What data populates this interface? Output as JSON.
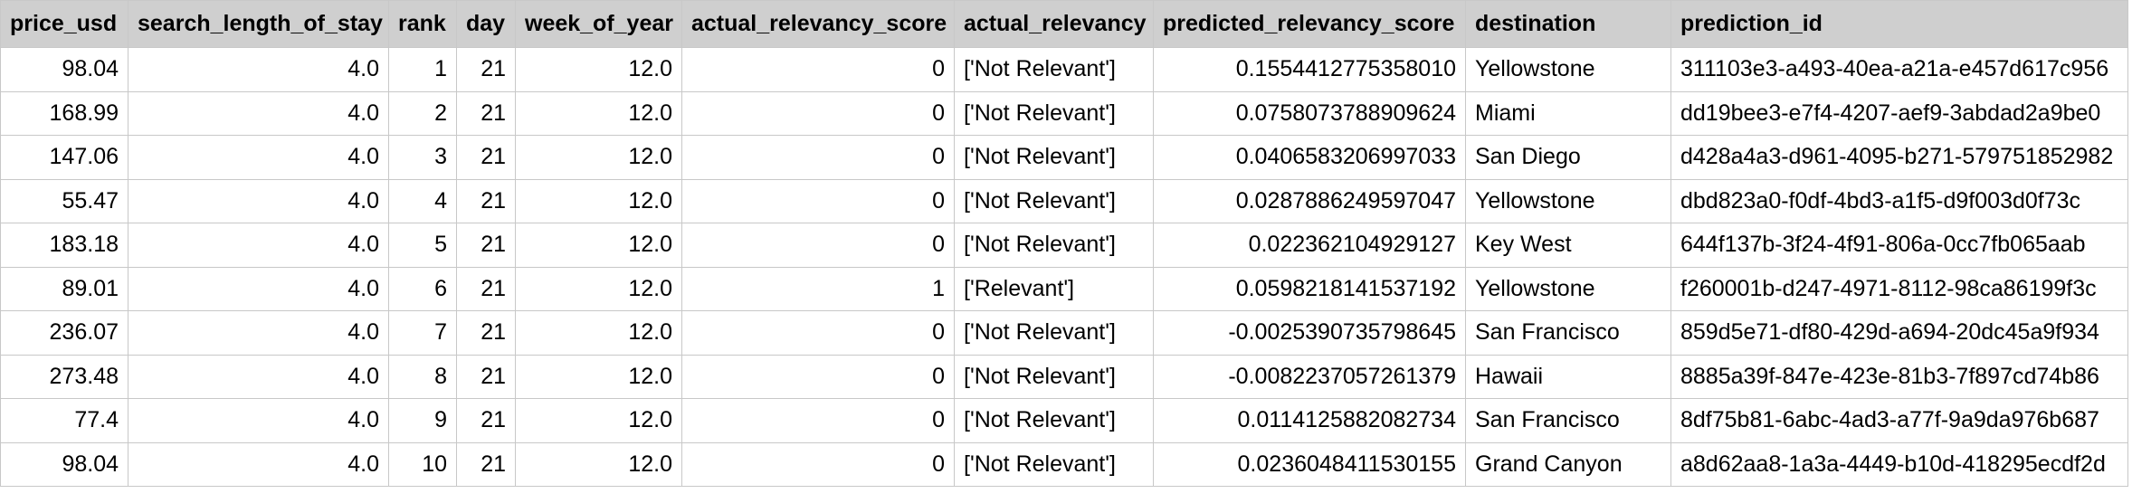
{
  "table": {
    "columns": [
      {
        "key": "price_usd",
        "label": "price_usd",
        "align": "num"
      },
      {
        "key": "search_length_of_stay",
        "label": "search_length_of_stay",
        "align": "num"
      },
      {
        "key": "rank",
        "label": "rank",
        "align": "num"
      },
      {
        "key": "day",
        "label": "day",
        "align": "num"
      },
      {
        "key": "week_of_year",
        "label": "week_of_year",
        "align": "num"
      },
      {
        "key": "actual_relevancy_score",
        "label": "actual_relevancy_score",
        "align": "num"
      },
      {
        "key": "actual_relevancy",
        "label": "actual_relevancy",
        "align": "txt"
      },
      {
        "key": "predicted_relevancy_score",
        "label": "predicted_relevancy_score",
        "align": "num"
      },
      {
        "key": "destination",
        "label": "destination",
        "align": "txt"
      },
      {
        "key": "prediction_id",
        "label": "prediction_id",
        "align": "txt"
      }
    ],
    "rows": [
      [
        "98.04",
        "4.0",
        "1",
        "21",
        "12.0",
        "0",
        "['Not Relevant']",
        "0.1554412775358010",
        "Yellowstone",
        "311103e3-a493-40ea-a21a-e457d617c956"
      ],
      [
        "168.99",
        "4.0",
        "2",
        "21",
        "12.0",
        "0",
        "['Not Relevant']",
        "0.0758073788909624",
        "Miami",
        "dd19bee3-e7f4-4207-aef9-3abdad2a9be0"
      ],
      [
        "147.06",
        "4.0",
        "3",
        "21",
        "12.0",
        "0",
        "['Not Relevant']",
        "0.0406583206997033",
        "San Diego",
        "d428a4a3-d961-4095-b271-579751852982"
      ],
      [
        "55.47",
        "4.0",
        "4",
        "21",
        "12.0",
        "0",
        "['Not Relevant']",
        "0.0287886249597047",
        "Yellowstone",
        "dbd823a0-f0df-4bd3-a1f5-d9f003d0f73c"
      ],
      [
        "183.18",
        "4.0",
        "5",
        "21",
        "12.0",
        "0",
        "['Not Relevant']",
        "0.022362104929127",
        "Key West",
        "644f137b-3f24-4f91-806a-0cc7fb065aab"
      ],
      [
        "89.01",
        "4.0",
        "6",
        "21",
        "12.0",
        "1",
        "['Relevant']",
        "0.0598218141537192",
        "Yellowstone",
        "f260001b-d247-4971-8112-98ca86199f3c"
      ],
      [
        "236.07",
        "4.0",
        "7",
        "21",
        "12.0",
        "0",
        "['Not Relevant']",
        "-0.0025390735798645",
        "San Francisco",
        "859d5e71-df80-429d-a694-20dc45a9f934"
      ],
      [
        "273.48",
        "4.0",
        "8",
        "21",
        "12.0",
        "0",
        "['Not Relevant']",
        "-0.0082237057261379",
        "Hawaii",
        "8885a39f-847e-423e-81b3-7f897cd74b86"
      ],
      [
        "77.4",
        "4.0",
        "9",
        "21",
        "12.0",
        "0",
        "['Not Relevant']",
        "0.0114125882082734",
        "San Francisco",
        "8df75b81-6abc-4ad3-a77f-9a9da976b687"
      ],
      [
        "98.04",
        "4.0",
        "10",
        "21",
        "12.0",
        "0",
        "['Not Relevant']",
        "0.0236048411530155",
        "Grand Canyon",
        "a8d62aa8-1a3a-4449-b10d-418295ecdf2d"
      ]
    ]
  }
}
